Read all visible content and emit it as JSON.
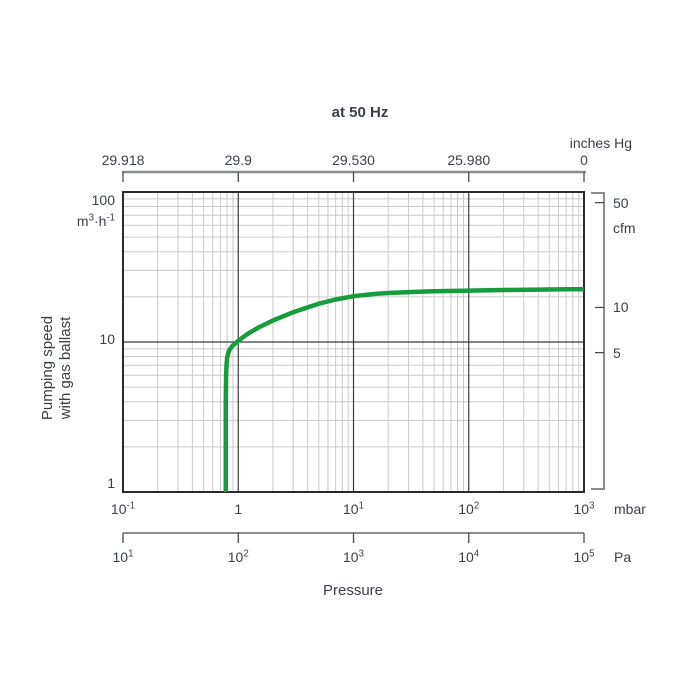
{
  "title": "at 50 Hz",
  "top_axis": {
    "unit": "inches Hg",
    "ticks": [
      "29.918",
      "29.9",
      "29.530",
      "25.980",
      "0"
    ]
  },
  "y_axis": {
    "label_line1": "Pumping speed",
    "label_line2": "with gas ballast",
    "unit_parts": {
      "base": "m",
      "sup1": "3",
      "mid": "·h",
      "sup2": "-1"
    },
    "ticks": [
      "100",
      "10",
      "1"
    ]
  },
  "right_axis": {
    "unit": "cfm",
    "ticks": [
      {
        "label": "50",
        "value": 50
      },
      {
        "label": "10",
        "value": 10
      },
      {
        "label": "5",
        "value": 5
      }
    ]
  },
  "x_axis_mbar": {
    "unit": "mbar",
    "ticks": [
      {
        "b": "10",
        "e": "-1"
      },
      {
        "b": "1",
        "e": ""
      },
      {
        "b": "10",
        "e": "1"
      },
      {
        "b": "10",
        "e": "2"
      },
      {
        "b": "10",
        "e": "3"
      }
    ]
  },
  "x_axis_pa": {
    "unit": "Pa",
    "ticks": [
      {
        "b": "10",
        "e": "1"
      },
      {
        "b": "10",
        "e": "2"
      },
      {
        "b": "10",
        "e": "3"
      },
      {
        "b": "10",
        "e": "4"
      },
      {
        "b": "10",
        "e": "5"
      }
    ]
  },
  "x_label": "Pressure",
  "colors": {
    "curve": "#169c3c",
    "text": "#3b4048",
    "grid_minor": "#c9c9c9",
    "grid_major": "#3a3a3a",
    "border": "#2b2b2b",
    "bar_gray": "#8c8c8c",
    "tick_dark": "#4a4a4a"
  },
  "chart_data": {
    "type": "line",
    "title": "at 50 Hz",
    "xlabel": "Pressure",
    "ylabel": "Pumping speed with gas ballast",
    "x_scale": "log",
    "y_scale": "log",
    "xlim_mbar": [
      0.1,
      1000
    ],
    "xlim_pa": [
      10,
      100000
    ],
    "ylim_m3h": [
      1,
      100
    ],
    "grid": true,
    "legend": false,
    "cfm_per_m3h": 0.588578,
    "right_axis_ticks_cfm": [
      50,
      10,
      5
    ],
    "top_scale_inches_hg": {
      "positions_mbar": [
        0.1,
        1,
        10,
        100,
        1000
      ],
      "labels": [
        "29.918",
        "29.9",
        "29.530",
        "25.980",
        "0"
      ]
    },
    "series": [
      {
        "name": "Pumping speed with gas ballast",
        "x_mbar": [
          0.78,
          0.78,
          0.785,
          0.79,
          0.8,
          0.82,
          0.85,
          0.9,
          1.0,
          1.2,
          1.5,
          2,
          3,
          4,
          5,
          7,
          10,
          15,
          20,
          30,
          50,
          100,
          200,
          400,
          700,
          1000
        ],
        "y_m3h": [
          1.0,
          4.0,
          6.0,
          7.0,
          7.8,
          8.5,
          9.0,
          9.5,
          10.2,
          11.3,
          12.5,
          13.9,
          15.8,
          17.0,
          18.0,
          19.2,
          20.2,
          20.9,
          21.2,
          21.5,
          21.8,
          22.0,
          22.2,
          22.35,
          22.45,
          22.5
        ]
      }
    ]
  }
}
